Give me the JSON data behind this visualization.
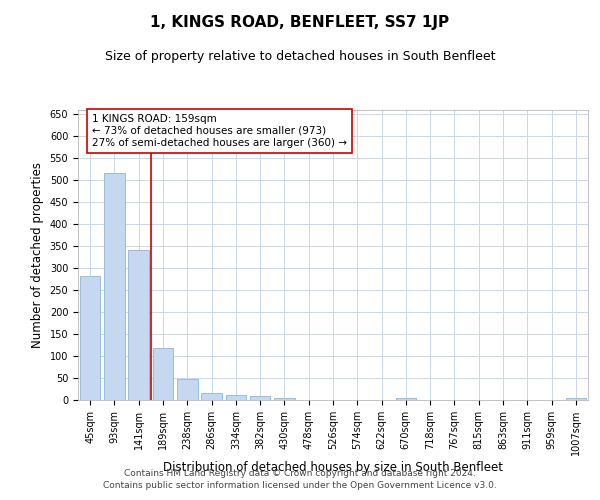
{
  "title": "1, KINGS ROAD, BENFLEET, SS7 1JP",
  "subtitle": "Size of property relative to detached houses in South Benfleet",
  "xlabel": "Distribution of detached houses by size in South Benfleet",
  "ylabel": "Number of detached properties",
  "categories": [
    "45sqm",
    "93sqm",
    "141sqm",
    "189sqm",
    "238sqm",
    "286sqm",
    "334sqm",
    "382sqm",
    "430sqm",
    "478sqm",
    "526sqm",
    "574sqm",
    "622sqm",
    "670sqm",
    "718sqm",
    "767sqm",
    "815sqm",
    "863sqm",
    "911sqm",
    "959sqm",
    "1007sqm"
  ],
  "values": [
    283,
    516,
    341,
    118,
    48,
    16,
    11,
    8,
    5,
    0,
    0,
    0,
    0,
    5,
    0,
    0,
    0,
    0,
    0,
    0,
    5
  ],
  "bar_color": "#c5d8f0",
  "bar_edge_color": "#7aadd4",
  "vline_x": 2.5,
  "vline_color": "#cc0000",
  "annotation_box_text": "1 KINGS ROAD: 159sqm\n← 73% of detached houses are smaller (973)\n27% of semi-detached houses are larger (360) →",
  "ylim": [
    0,
    660
  ],
  "yticks": [
    0,
    50,
    100,
    150,
    200,
    250,
    300,
    350,
    400,
    450,
    500,
    550,
    600,
    650
  ],
  "footer_line1": "Contains HM Land Registry data © Crown copyright and database right 2024.",
  "footer_line2": "Contains public sector information licensed under the Open Government Licence v3.0.",
  "background_color": "#ffffff",
  "grid_color": "#c8d8e8",
  "title_fontsize": 11,
  "subtitle_fontsize": 9,
  "axis_label_fontsize": 8.5,
  "tick_fontsize": 7,
  "annotation_fontsize": 7.5,
  "footer_fontsize": 6.5
}
